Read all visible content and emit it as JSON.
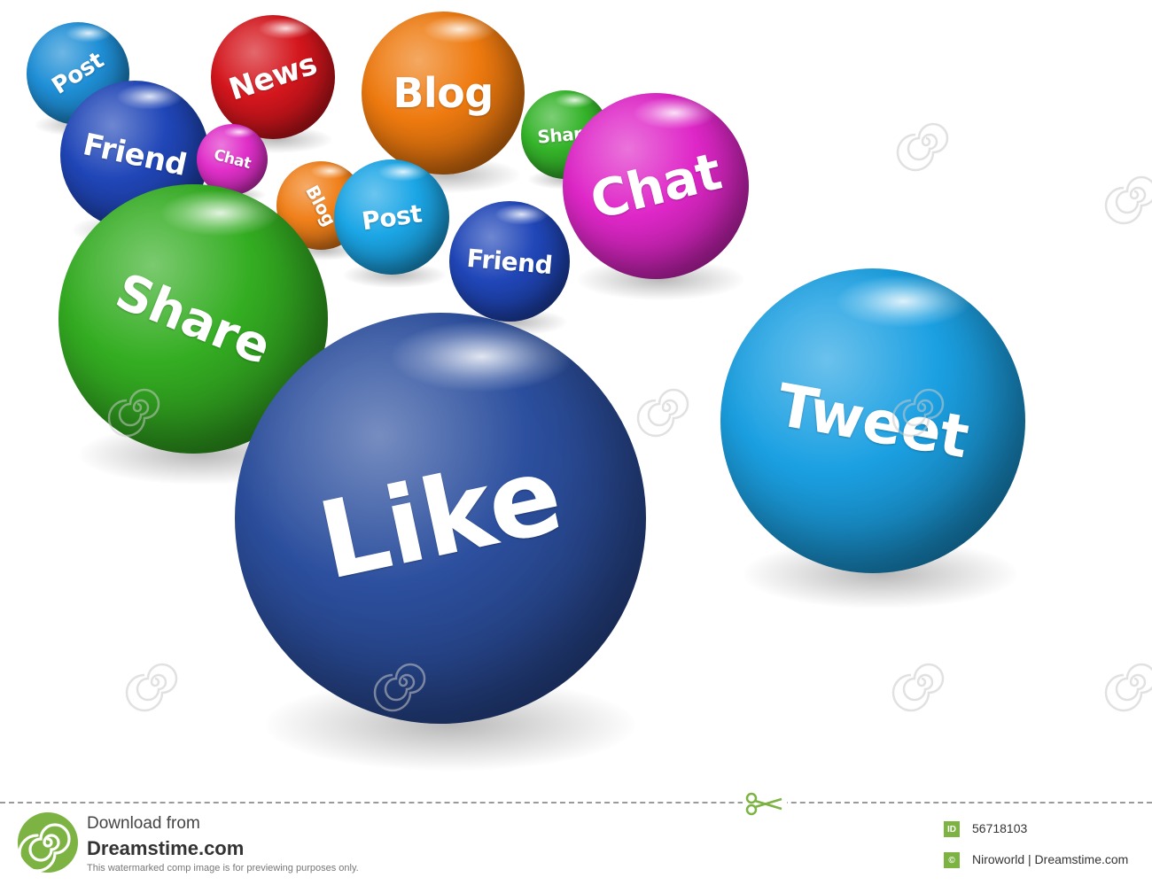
{
  "bubbles": [
    {
      "id": "post-small",
      "label": "Post",
      "color": "#1f8fd6"
    },
    {
      "id": "news",
      "label": "News",
      "color": "#d4161d"
    },
    {
      "id": "blog-large",
      "label": "Blog",
      "color": "#ee7a0f"
    },
    {
      "id": "share-small",
      "label": "Share",
      "color": "#35b42a"
    },
    {
      "id": "friend-top",
      "label": "Friend",
      "color": "#2046b8"
    },
    {
      "id": "chat-small",
      "label": "Chat",
      "color": "#e02fc9"
    },
    {
      "id": "blog-small",
      "label": "Blog",
      "color": "#f0801a"
    },
    {
      "id": "post-mid",
      "label": "Post",
      "color": "#1ba6e6"
    },
    {
      "id": "friend-mid",
      "label": "Friend",
      "color": "#2046b8"
    },
    {
      "id": "chat-large",
      "label": "Chat",
      "color": "#df27c8"
    },
    {
      "id": "share-large",
      "label": "Share",
      "color": "#34ad22"
    },
    {
      "id": "tweet",
      "label": "Tweet",
      "color": "#1ba0e2"
    },
    {
      "id": "like",
      "label": "Like",
      "color": "#2c4f9e"
    }
  ],
  "watermark_text": "dreamstime",
  "footer": {
    "download_text": "Download from",
    "site_name": "Dreamstime.com",
    "note": "This watermarked comp image is for previewing purposes only.",
    "id_tag": "ID",
    "image_id": "56718103",
    "credit_tag": "©",
    "credit": "Niroworld | Dreamstime.com",
    "accent_color": "#7cb342"
  }
}
